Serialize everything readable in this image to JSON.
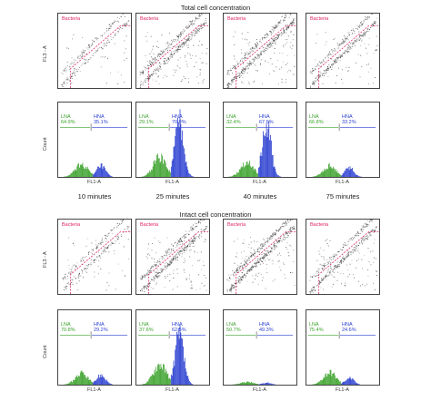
{
  "titles": {
    "total": "Total cell concentration",
    "intact": "Intact cell concentration"
  },
  "axis": {
    "scatter_y": "FL3 - A",
    "hist_y": "Count",
    "hist_x": "FL1-A",
    "gate": "Bacteria",
    "lna": "LNA",
    "hna": "HNA"
  },
  "times": [
    "10 minutes",
    "25 minutes",
    "40 minutes",
    "75 minutes"
  ],
  "colors": {
    "lna": "#3aa12a",
    "hna": "#2a3fd0",
    "gate": "#e0245e",
    "dots": "#333333"
  },
  "chart_data": [
    {
      "type": "histogram",
      "title": "Total cell concentration",
      "series": [
        {
          "name": "LNA",
          "values": [
            "64.9%",
            "29.1%",
            "32.4%",
            "66.8%"
          ]
        },
        {
          "name": "HNA",
          "values": [
            "35.1%",
            "70.9%",
            "67.6%",
            "33.2%"
          ]
        }
      ],
      "categories": [
        "10 minutes",
        "25 minutes",
        "40 minutes",
        "75 minutes"
      ]
    },
    {
      "type": "histogram",
      "title": "Intact cell concentration",
      "series": [
        {
          "name": "LNA",
          "values": [
            "70.8%",
            "37.6%",
            "50.7%",
            "75.4%"
          ]
        },
        {
          "name": "HNA",
          "values": [
            "29.2%",
            "62.5%",
            "49.3%",
            "24.6%"
          ]
        }
      ],
      "categories": [
        "10 minutes",
        "25 minutes",
        "40 minutes",
        "75 minutes"
      ]
    }
  ]
}
